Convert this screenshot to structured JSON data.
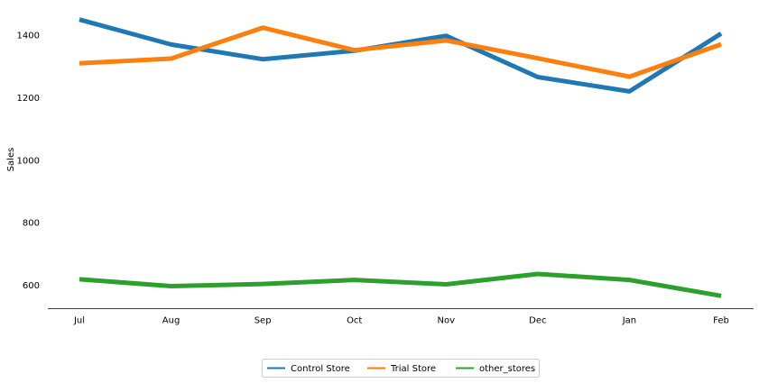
{
  "chart_data": {
    "type": "line",
    "title": "",
    "xlabel": "",
    "ylabel": "Sales",
    "categories": [
      "Jul",
      "Aug",
      "Sep",
      "Oct",
      "Nov",
      "Dec",
      "Jan",
      "Feb"
    ],
    "yticks": [
      600,
      800,
      1000,
      1200,
      1400
    ],
    "ylim": [
      525,
      1485
    ],
    "grid": false,
    "legend_position": "bottom-center",
    "series": [
      {
        "name": "Control Store",
        "color": "#1f77b4",
        "values": [
          1450,
          1370,
          1323,
          1350,
          1398,
          1266,
          1220,
          1405
        ]
      },
      {
        "name": "Trial Store",
        "color": "#ff7f0e",
        "values": [
          1310,
          1325,
          1424,
          1352,
          1383,
          1326,
          1267,
          1371
        ]
      },
      {
        "name": "other_stores",
        "color": "#2ca02c",
        "values": [
          619,
          597,
          604,
          617,
          603,
          636,
          617,
          566
        ]
      }
    ]
  }
}
